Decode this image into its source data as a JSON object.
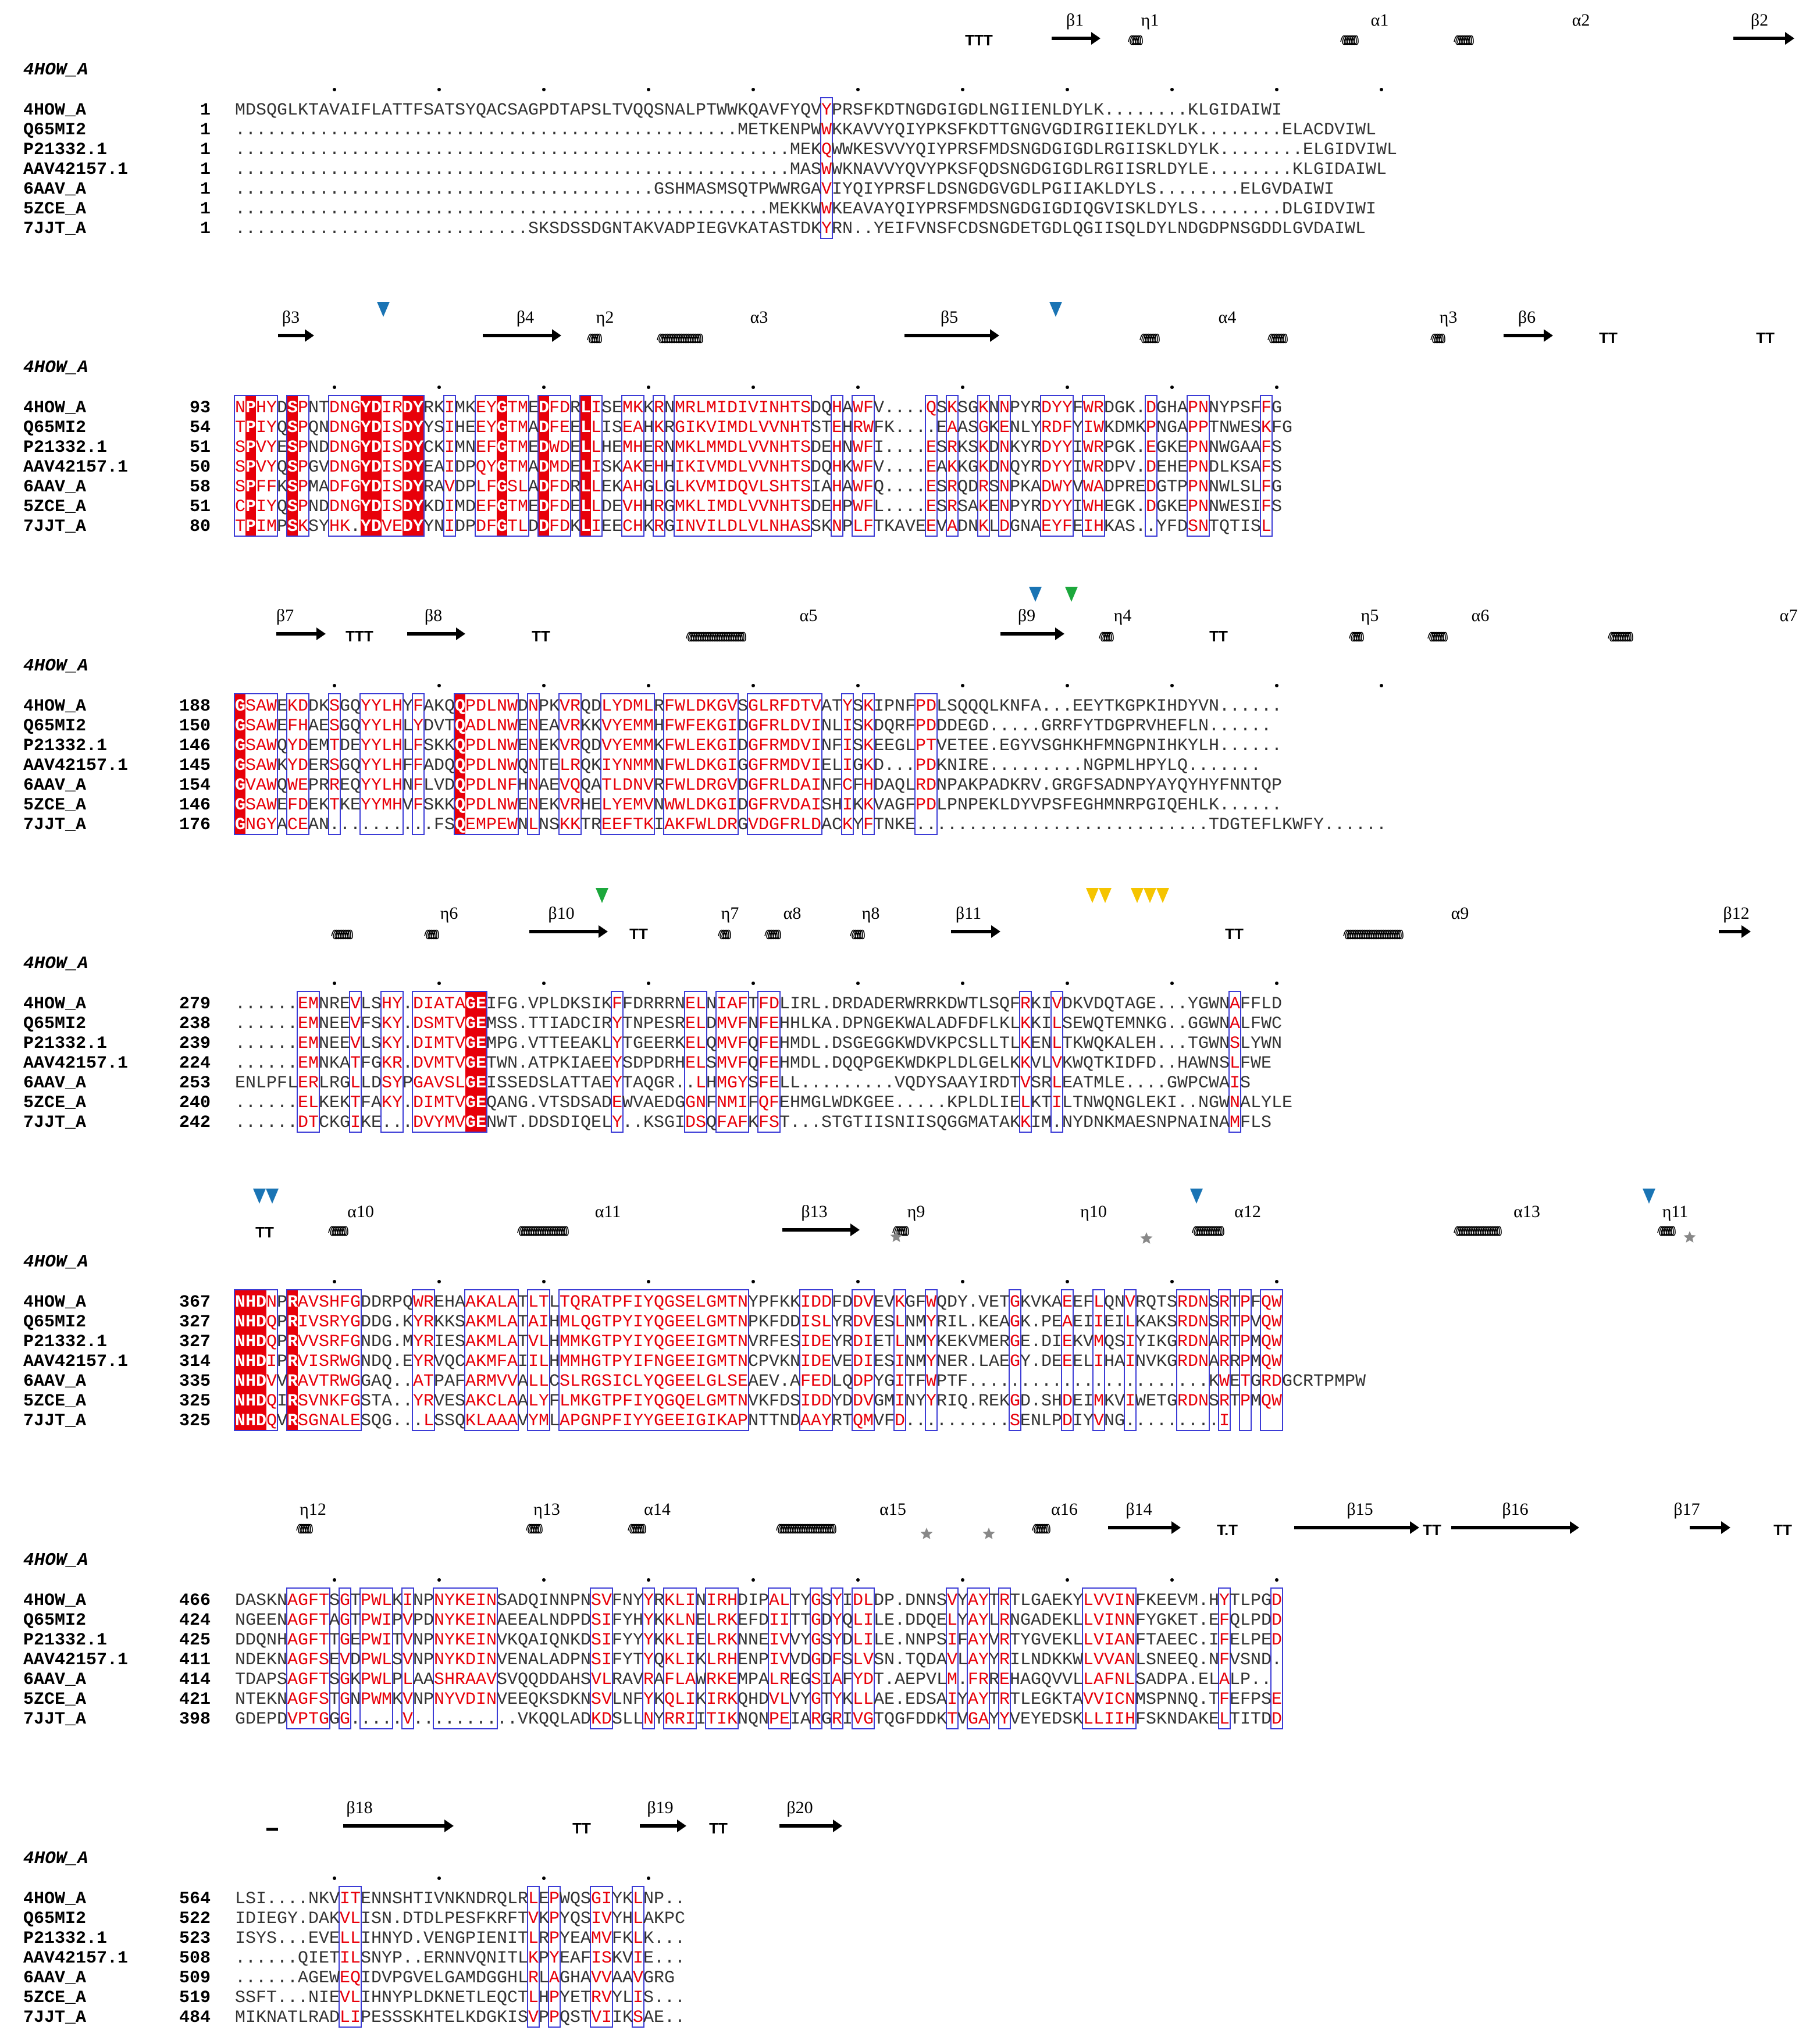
{
  "colors": {
    "identical_bg": "#e8000a",
    "identical_text": "#ffffff",
    "similar_text": "#e8000a",
    "box_border": "#3b3bd6",
    "normal_text": "#333333",
    "marker_blue": "#1a74b4",
    "marker_green": "#1ca83c",
    "marker_yellow": "#f5c400",
    "star_gray": "#888888"
  },
  "reference": "4HOW_A",
  "sequence_names": [
    "4HOW_A",
    "Q65MI2",
    "P21332.1",
    "AAV42157.1",
    "6AAV_A",
    "5ZCE_A",
    "7JJT_A"
  ],
  "blocks": [
    {
      "starts": [
        "1",
        "1",
        "1",
        "1",
        "1",
        "1",
        "1"
      ],
      "rows": [
        "MDSQGLKTAVAIFLATTFSATSYQACSAGPDTAPSLTVQQSNALPTWWKQAVFYQVYPRSFKDTNGDGIGDLNGIIENLDYLK........KLGIDAIWI",
        "................................................METKENPWWKKAVVYQIYPKSFKDTTGNGVGDIRGIIEKLDYLK........ELACDVIWL",
        ".....................................................MEKQWWKESVVYQIYPRSFMDSNGDGIGDLRGIISKLDYLK........ELGIDVIWL",
        ".....................................................MASWWKNAVVYQVYPKSFQDSNGDGIGDLRGIISRLDYLE........KLGIDAIWL",
        "........................................GSHMASMSQTPWWRGAVIYQIYPRSFLDSNGDGVGDLPGIIAKLDYLS........ELGVDAIWI",
        "...................................................MEKKWWKEAVAYQIYPRSFMDSNGDGIGDIQGVISKLDYLS........DLGIDVIWI",
        "............................SKSDSSDGNTAKVADPIEGVKATASTDKYRN..YEIFVNSFCDSNGDETGDLQGIISQLDYLNDGDPNSGDDLGVDAIWL"
      ]
    },
    {
      "starts": [
        "93",
        "54",
        "51",
        "50",
        "58",
        "51",
        "80"
      ],
      "rows": [
        "NPHYDSPNTDNGYDIRDYRKIMKEYGTMEDFDRLISEMKKRNMRLMIDIVINHTSDQHAWFV....QSKSGKNNPYRDYYFWRDGK.DGHAPNNYPSFFG",
        "TPIYQSPQNDNGYDISDYYSIHEEYGTMADFEELLISEAHKRGIKVIMDLVVNHTSTEHRWFK....EAASGKENLYRDFYIWKDMKPNGAPPTNWESKFG",
        "SPVYESPNDDNGYDISDYCKIMNEFGTMEDWDELLHEMHERNMKLMMDLVVNHTSDEHNWFI....ESRKSKDNKYRDYYIWRPGK.EGKEPNNWGAAFS",
        "SPVYQSPGVDNGYDISDYEAIDPQYGTMADMDELISKAKEHHIKIVMDLVVNHTSDQHKWFV....EAKKGKDNQYRDYYIWRDPV.DEHEPNDLKSAFS",
        "SPFFKSPMADFGYDISDYRAVDPLFGSLADFDRLLEKAHGLGLKVMIDQVLSHTSIAHAWFQ....ESRQDRSNPKADWYVWADPREDGTPPNNWLSLFG",
        "CPIYQSPNDDNGYDISDYKDIMDEFGTMEDFDELLDEVHHRGMKLIMDLVVNHTSDEHPWFL....ESRSAKENPYRDYYIWHEGK.DGKEPNNWESIFS",
        "TPIMPSKSYHK.YDVEDYYNIDPDFGTLDDFDKLIEECHKRGINVILDLVLNHASSKNPLFTKAVEEVADNKLDGNAEYFEIHKAS..YFDSNTQTISL"
      ]
    },
    {
      "starts": [
        "188",
        "150",
        "146",
        "145",
        "154",
        "146",
        "176"
      ],
      "rows": [
        "GSAWEKDDKSGQYYLHYFAKQQPDLNWDNPKVRQDLYDMLRFWLDKGVSGLRFDTVATYSKIPNFPDLSQQQLKNFA...EEYTKGPKIHDYVN......",
        "GSAWEFHAESGQYYLHLYDVTQADLNWENEAVRKKVYEMMHFWFEKGIDGFRLDVINLISKDQRFPDDDEGD.....GRRFYTDGPRVHEFLN......",
        "GSAWQYDEMTDEYYLHLFSKKQPDLNWENEKVRQDVYEMMKFWLEKGIDGFRMDVINFISKEEGLPTVETEE.EGYVSGHKHFMNGPNIHKYLH......",
        "GSAWKYDERSGQYYLHFFADQQPDLNWQNTELRQKIYNMMNFWLDKGIGGFRMDVIELIGKD...PDKNIRE.........NGPMLHPYLQ.......",
        "GVAWQWEPRREQYYLHNFLVDQPDLNFHNAEVQQATLDNVRFWLDRGVDGFRLDAINFCFHDAQLRDNPAKPADKRV.GRGFSADNPYAYQYHYFNNTQP",
        "GSAWEFDEKTKEYYMHVFSKKQPDLNWENEKVRHELYEMVNWWLDKGIDGFRVDAISHIKKVAGFPDLPNPEKLDYVPSFEGHMNRPGIQEHLK......",
        "GNGYACEAN..........FSQEMPEWNLNSKKTREEFTKIAKFWLDRGVDGFRLDACKYFTNKE............................TDGTEFLKWFY......"
      ]
    },
    {
      "starts": [
        "279",
        "238",
        "239",
        "224",
        "253",
        "240",
        "242"
      ],
      "rows": [
        "......EMNREVLSHY.DIATAGEIFG.VPLDKSIKFFDRRRNELNIAFTFDLIRL.DRDADERWRRKDWTLSQFRKIVDKVDQTAGE...YGWNAFFLD",
        "......EMNEEVFSKY.DSMTVGEMSS.TTIADCIRYTNPESRELDMVFNFEHHLKA.DPNGEKWALADFDFLKLKKILSEWQTEMNKG..GGWNALFWC",
        "......EMNEEVLSKY.DIMTVGEMPG.VTTEEAKLYTGEERKELQMVFQFEHMDL.DSGEGGKWDVKPCSLLTLKENLTKWQKALEH...TGWNSLYWN",
        "......EMNKATFGKR.DVMTVGETWN.ATPKIAEEYSDPDRHELSMVFQFEHMDL.DQQPGEKWDKPLDLGELKKVLVKWQTKIDFD..HAWNSLFWE",
        "ENLPFLERLRGLLDSYPGAVSLGEISSEDSLATTAEYTAQGR..LHMGYSFELL.........VQDYSAAYIRDTVSRLEATMLE....GWPCWAIS",
        "......ELKEKTFAKY.DIMTVGEQANG.VTSDSADEWVAEDGGNFNMIFQFEHMGLWDKGEE.....KPLDLIELKTILTNWQNGLEKI..NGWNALYLE",
        "......DTCKGIKE...DVYMVGENWT.DDSDIQELY..KSGIDSQFAFKFST...STGTIISNIISQGGMATAKKIM.NYDNKMAESNPNAINAMFLS"
      ]
    },
    {
      "starts": [
        "367",
        "327",
        "327",
        "314",
        "335",
        "325",
        "325"
      ],
      "rows": [
        "NHDNPRAVSHFGDDRPQWREHAAKALATLTLTQRATPFIYQGSELGMTNYPFKKIDDFDDVEVKGFWQDY.VETGKVKAEEFLQNVRQTSRDNSRTPFQW",
        "NHDQPRIVSRYGDDG.KYRKKSAKMLATAIHMLQGTPYIYQGEELGMTNPKFDDISLYRDVESLNMYRIL.KEAGK.PEAEIIEILKAKSRDNSRTPVQW",
        "NHDQPRVVSRFGNDG.MYRIESAKMLATVLHMMKGTPYIYQGEEIGMTNVRFESIDEYRDIETLNMYKEKVMERGE.DIEKVMQSIYIKGRDNARTPMQW",
        "NHDIPRVISRWGNDQ.EYRVQCAKMFAIILHMMHGTPYIFNGEEIGMTNCPVKNIDEVEDIESINMYNER.LAEGY.DEEELIHAINVKGRDNARRPMQW",
        "NHDVVRAVTRWGGAQ..ATPAFARMVVALLCSLRGSICLYQGEELGLSEAEV.AFEDLQDPYGITFWPTF.......................KWETGRDGCRTPMPW",
        "NHDQIRSVNKFGSTA..YRVESAKCLAALYFLMKGTPFIYQGQELGMTNVKFDSIDDYDDVGMINYYRIQ.REKGD.SHDEIMKVIWETGRDNSRTPMQW",
        "NHDQVRSGNALESQG...LSSQKLAAAVYMLAPGNPFIYYGEEIGIKAPNTTNDAAYRTQMVFD..........SENLPDIYVNG.........I"
      ]
    },
    {
      "starts": [
        "466",
        "424",
        "425",
        "411",
        "414",
        "421",
        "398"
      ],
      "rows": [
        "DASKNAGFTSGTPWLKINPNYKEINSADQINNPNSVFNYYRKLINIRHDIPALTYGSYIDLDP.DNNSVYAYTRTLGAEKYLVVINFKEEVM.HYTLPGD",
        "NGEENAGFTAGTPWIPVPDNYKEINAEEALNDPDSIFYHYKKLNELRKEFDIITTGDYQLILE.DDQELYAYLRNGADEKLLVINNFYGKET.EFQLPDD",
        "DDQNHAGFTTGEPWITVNPNYKEINVKQAIQNKDSIFYYYKKLIELRKNNEIVVYGSYDLILE.NNPSIFAYVRTYGVEKLLVIANFTAEEC.IFELPED",
        "NDEKNAGFSEVDPWLSVNPNYKDINVENALADPNSIFYTYQKLIKLRHENPIVVDGDFSLVSN.TQDAVLAYYRILNDKKWLVVANLSNEEQ.NFVSND.",
        "TDAPSAGFTSGKPWLPLAASHRAAVSVQQDDAHSVLRAVRAFLAWRKEMPALREGSIAFYDT.AEPVLM.FRREHAGQVVLLAFNLSADPA.ELALP..",
        "NTEKNAGFSTGNPWMKVNPNYVDINVEEQKSDKNSVLNFYKQLIKIRKQHDVLVYGTYKLLAE.EDSAIYAYTRTLEGKTAVVICNMSPNNQ.TFEFPSE",
        "GDEPDVPTGGG.....V..........VKQQLADKDSLLNYRRIITIKNQNPEIARGRIVGTQGFDDKTVGAYYVEYEDSKLLIIHFSKNDAKELTITDD"
      ]
    },
    {
      "starts": [
        "564",
        "522",
        "523",
        "508",
        "509",
        "519",
        "484"
      ],
      "rows": [
        "LSI....NKVITENNSHTIVNKNDRQLRLEPWQSGIYKLNP..",
        "IDIEGY.DAKVLISN.DTDLPESFKRFTVKPYQSIVYHLAKPC",
        "ISYS...EVELLIHNYD.VENGPIENITLRPYEAMVFKLK...",
        "......QIETILSNYP..ERNNVQNITLKPYEAFISKVIE...",
        "......AGEWEQIDVPGVELGAMDGGHLRLAGHAVVAAVGRG",
        "SSFT...NIEVLIHNYPLDKNETLEQCTLHPYETRVYLIS...",
        "MIKNATLRADLIPESSSKHTELKDGKISVPPQSTVIIKSAE.."
      ]
    }
  ],
  "secondary_structure": [
    [
      "TTT",
      "β1",
      "η1",
      "α1",
      "α2",
      "β2"
    ],
    [
      "β3",
      "β4",
      "η2",
      "α3",
      "β5",
      "α4",
      "η3",
      "β6",
      "TT",
      "TT"
    ],
    [
      "TTT",
      "β8",
      "TT",
      "α5",
      "β9",
      "η4",
      "TT",
      "η5",
      "α6",
      "α7",
      "β7"
    ],
    [
      "η6",
      "β10",
      "TT",
      "η7",
      "α8",
      "η8",
      "β11",
      "TT",
      "α9",
      "β12"
    ],
    [
      "TT",
      "α10",
      "α11",
      "β13",
      "η9",
      "η10",
      "α12",
      "α13",
      "η11"
    ],
    [
      "η12",
      "η13",
      "α14",
      "α15",
      "α16",
      "β14",
      "T.T",
      "β15",
      "TT",
      "β16",
      "β17",
      "TT"
    ],
    [
      "β18",
      "TT",
      "β19",
      "TT",
      "β20"
    ]
  ]
}
